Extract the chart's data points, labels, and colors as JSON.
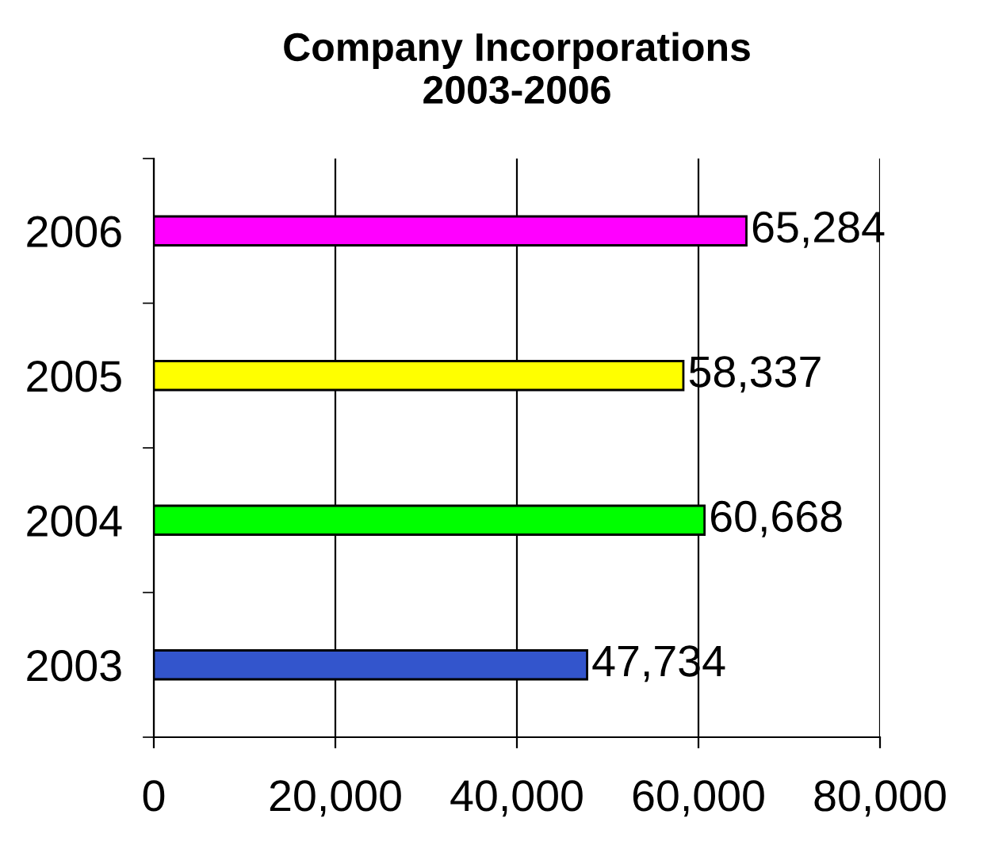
{
  "chart_data": {
    "type": "bar",
    "orientation": "horizontal",
    "title": "Company Incorporations\n2003-2006",
    "categories": [
      "2006",
      "2005",
      "2004",
      "2003"
    ],
    "values": [
      65284,
      58337,
      60668,
      47734
    ],
    "value_labels": [
      "65,284",
      "58,337",
      "60,668",
      "47,734"
    ],
    "colors": [
      "#ff00ff",
      "#ffff00",
      "#00ff00",
      "#3355cc"
    ],
    "xlim": [
      0,
      80000
    ],
    "xticks": [
      0,
      {
        "value": 20000,
        "label": "20,000"
      },
      {
        "value": 40000,
        "label": "40,000"
      },
      {
        "value": 60000,
        "label": "60,000"
      },
      {
        "value": 80000,
        "label": "80,000"
      }
    ],
    "grid": "x",
    "legend": false
  }
}
